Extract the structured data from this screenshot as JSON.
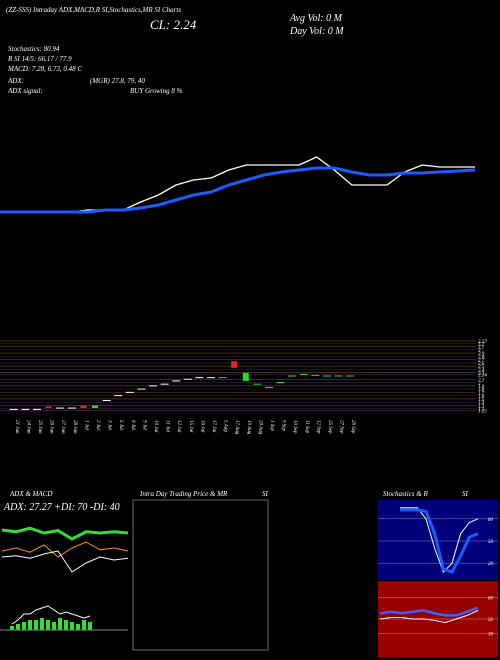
{
  "header": {
    "symbol_line": "(ZZ-SSS) Intraday ADX,MACD,R SI,Stochastics,MR SI Charts",
    "close": "CL: 2.24",
    "avg_vol": "Avg Vol: 0  M",
    "day_vol": "Day Vol: 0  M"
  },
  "indicators": {
    "stochastics": "Stochastics: 80.94",
    "rsi": "R SI 14/5: 66.17 / 77.9",
    "macd": "MACD: 7.28, 6.73, 0.48 C",
    "adx": "ADX:",
    "mgr": "(MGR) 27.8,  79,  40",
    "adx_signal": "ADX  signal:",
    "buy": "BUY Growing 8 %"
  },
  "main_chart": {
    "type": "line",
    "ylim": [
      0,
      90
    ],
    "series": [
      {
        "color": "#ffffff",
        "values": [
          18,
          18,
          18,
          18,
          18,
          20,
          20,
          20,
          28,
          35,
          45,
          50,
          52,
          60,
          65,
          65,
          65,
          65,
          73,
          60,
          45,
          45,
          45,
          58,
          65,
          63,
          63,
          63
        ]
      },
      {
        "color": "#1a5cff",
        "values": [
          18,
          18,
          18,
          18,
          18,
          18,
          20,
          20,
          22,
          25,
          30,
          35,
          38,
          45,
          50,
          55,
          58,
          60,
          62,
          62,
          58,
          55,
          55,
          57,
          57,
          58,
          59,
          60
        ]
      }
    ]
  },
  "candles": {
    "type": "candlestick",
    "ylim": [
      1.1,
      3.3
    ],
    "yticks": [
      3.27,
      3.2,
      3.1,
      3.0,
      2.9,
      2.8,
      2.7,
      2.6,
      2.5,
      2.4,
      2.3,
      2.24,
      2.1,
      2.0,
      1.9,
      1.8,
      1.7,
      1.6,
      1.5,
      1.4,
      1.3,
      1.2,
      1.15
    ],
    "categories": [
      "21 Jun",
      "24 Jun",
      "25 Jun",
      "26 Jun",
      "27 Jun",
      "28 Jun",
      "1 Jul",
      "2 Jul",
      "3 Jul",
      "5 Jul",
      "8 Jul",
      "9 Jul",
      "10 Jul",
      "11 Jul",
      "12 Jul",
      "15 Jul",
      "16 Jul",
      "17 Jul",
      "5 Aug",
      "17 Aug",
      "19 Aug",
      "20 Aug",
      "1 Sep",
      "9 Sep",
      "10 Sep",
      "11 Sep",
      "12 Sep",
      "25 Sep",
      "27 Sep",
      "29 Sep"
    ],
    "open": [
      1.18,
      1.18,
      1.18,
      1.27,
      1.22,
      1.22,
      1.3,
      1.22,
      1.45,
      1.6,
      1.7,
      1.8,
      1.9,
      1.95,
      2.05,
      2.1,
      2.15,
      2.15,
      2.15,
      2.65,
      2.05,
      1.95,
      1.85,
      2.0,
      2.2,
      2.25,
      2.22,
      2.2,
      2.2,
      2.2
    ],
    "close": [
      1.18,
      1.18,
      1.18,
      1.22,
      1.22,
      1.22,
      1.22,
      1.3,
      1.45,
      1.6,
      1.7,
      1.8,
      1.9,
      1.95,
      2.05,
      2.1,
      2.15,
      2.15,
      2.15,
      2.45,
      2.3,
      1.95,
      1.85,
      2.0,
      2.2,
      2.25,
      2.22,
      2.2,
      2.2,
      2.2
    ]
  },
  "adx_panel": {
    "title": "ADX  & MACD",
    "readout": "ADX: 27.27  +DI: 70  -DI: 40",
    "ylim": [
      0,
      100
    ],
    "series": [
      {
        "color": "#33dd33",
        "values": [
          75,
          72,
          78,
          70,
          74,
          60,
          72,
          70,
          72,
          70
        ]
      },
      {
        "color": "#ff8c1a",
        "values": [
          40,
          45,
          38,
          50,
          30,
          45,
          55,
          42,
          45,
          40
        ]
      },
      {
        "color": "#ffffff",
        "values": [
          30,
          32,
          28,
          35,
          40,
          5,
          20,
          30,
          25,
          28
        ]
      }
    ],
    "macd_hist": [
      2,
      3,
      4,
      5,
      5,
      6,
      5,
      4,
      6,
      5,
      4,
      3,
      5,
      4
    ],
    "macd_line": [
      3,
      5,
      8,
      8,
      10,
      11,
      12,
      10,
      8,
      9,
      8,
      7,
      6,
      7
    ]
  },
  "mid_panel": {
    "title": "Intra Day Trading Price  & MR",
    "title2": "SI"
  },
  "stoch_panel": {
    "title": "Stochastics & R",
    "title2": "SI",
    "ylim": [
      0,
      100
    ],
    "yticks": [
      80,
      50,
      20
    ],
    "series": [
      {
        "color": "#ffffff",
        "values": [
          95,
          95,
          95,
          80,
          40,
          8,
          20,
          60,
          75,
          80
        ]
      },
      {
        "color": "#1a5cff",
        "values": [
          92,
          92,
          92,
          90,
          60,
          12,
          8,
          30,
          55,
          60
        ]
      }
    ],
    "rsi_yticks": [
      80,
      50,
      30
    ],
    "rsi": [
      {
        "color": "#ffffff",
        "values": [
          50,
          52,
          52,
          50,
          50,
          48,
          45,
          50,
          55,
          62
        ]
      },
      {
        "color": "#3366ff",
        "values": [
          58,
          60,
          58,
          60,
          62,
          58,
          55,
          55,
          60,
          66
        ]
      }
    ]
  }
}
